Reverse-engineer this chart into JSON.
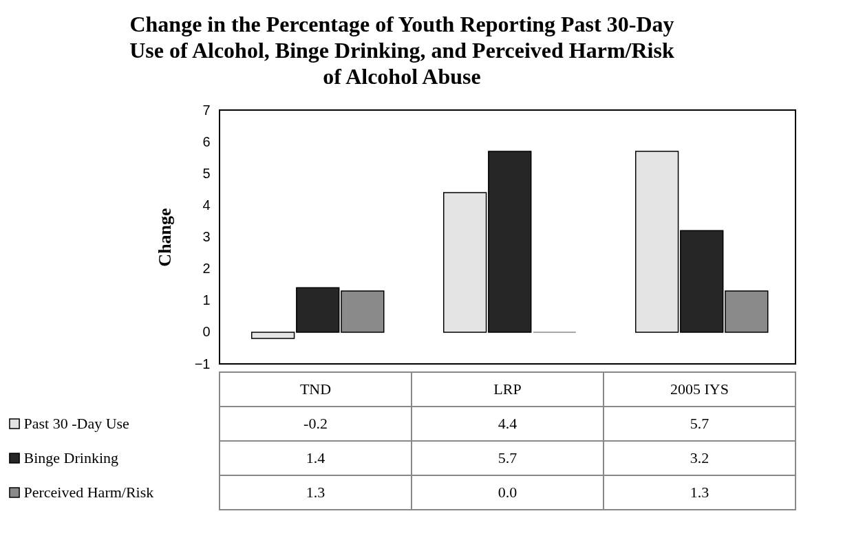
{
  "chart_data": {
    "type": "bar",
    "title": "Change in the Percentage of Youth Reporting Past 30-Day\nUse of Alcohol, Binge Drinking, and Perceived Harm/Risk\nof Alcohol Abuse",
    "ylabel": "Change",
    "categories": [
      "TND",
      "LRP",
      "2005 IYS"
    ],
    "series": [
      {
        "name": "Past 30 -Day Use",
        "color": "#e4e4e4",
        "values": [
          -0.2,
          4.4,
          5.7
        ],
        "value_labels": [
          "-0.2",
          "4.4",
          "5.7"
        ]
      },
      {
        "name": "Binge Drinking",
        "color": "#262626",
        "values": [
          1.4,
          5.7,
          3.2
        ],
        "value_labels": [
          "1.4",
          "5.7",
          "3.2"
        ]
      },
      {
        "name": "Perceived Harm/Risk",
        "color": "#8a8a8a",
        "values": [
          1.3,
          0.0,
          1.3
        ],
        "value_labels": [
          "1.3",
          "0.0",
          "1.3"
        ]
      }
    ],
    "ylim": [
      -1,
      7
    ],
    "yticks": [
      -1,
      0,
      1,
      2,
      3,
      4,
      5,
      6,
      7
    ],
    "grid": false,
    "legend": "bottom left"
  }
}
